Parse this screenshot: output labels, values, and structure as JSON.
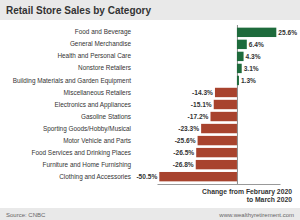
{
  "chart_data": {
    "type": "bar",
    "orientation": "horizontal",
    "title": "Retail Store Sales by Category",
    "categories": [
      "Food and Beverage",
      "General Merchandise",
      "Health and Personal Care",
      "Nonstore Retailers",
      "Building Materials and Garden Equipment",
      "Miscellaneous Retailers",
      "Electronics and Appliances",
      "Gasoline Stations",
      "Sporting Goods/Hobby/Musical",
      "Motor Vehicle and Parts",
      "Food Services and Drinking Places",
      "Furniture and Home Furnishing",
      "Clothing and Accessories"
    ],
    "values": [
      25.6,
      6.4,
      4.3,
      3.1,
      1.3,
      -14.3,
      -15.1,
      -17.2,
      -23.3,
      -25.6,
      -26.5,
      -26.8,
      -50.5
    ],
    "value_labels": [
      "25.6%",
      "6.4%",
      "4.3%",
      "3.1%",
      "1.3%",
      "-14.3%",
      "-15.1%",
      "-17.2%",
      "-23.3%",
      "-25.6%",
      "-26.5%",
      "-26.8%",
      "-50.5%"
    ],
    "colors": [
      "#1e6b3c",
      "#1e6b3c",
      "#1e6b3c",
      "#1e6b3c",
      "#1e6b3c",
      "#a8432e",
      "#a8432e",
      "#a8432e",
      "#a8432e",
      "#a8432e",
      "#a8432e",
      "#a8432e",
      "#a8432e"
    ],
    "data_labels": true,
    "xlim": [
      -52,
      28
    ],
    "xticks": [
      0
    ],
    "tick_labels": false,
    "annotations": [
      "Change from February 2020",
      "to March 2020"
    ],
    "source": "Source: CNBC",
    "credit": "www.wealthyretirement.com"
  }
}
